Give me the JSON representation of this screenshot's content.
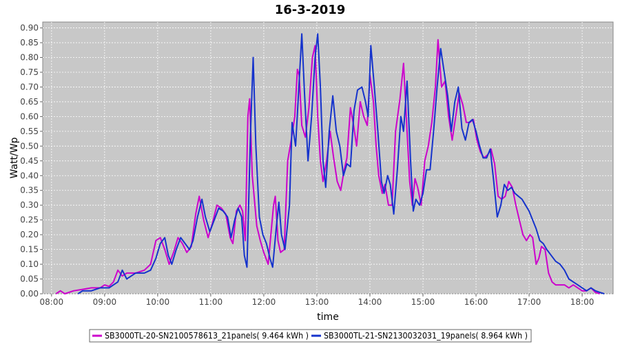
{
  "chart_data": {
    "type": "line",
    "title": "16-3-2019",
    "xlabel": "time",
    "ylabel": "Watt/Wp",
    "xlim": [
      "07:50",
      "18:35"
    ],
    "ylim": [
      0,
      0.92
    ],
    "x_ticks": [
      "08:00",
      "09:00",
      "10:00",
      "11:00",
      "12:00",
      "13:00",
      "14:00",
      "15:00",
      "16:00",
      "17:00",
      "18:00"
    ],
    "y_ticks": [
      0,
      0.05,
      0.1,
      0.15,
      0.2,
      0.25,
      0.3,
      0.35,
      0.4,
      0.45,
      0.5,
      0.55,
      0.6,
      0.65,
      0.7,
      0.75,
      0.8,
      0.85,
      0.9
    ],
    "y_tick_labels": [
      "0.00",
      "0.05",
      "0.10",
      "0.15",
      "0.20",
      "0.25",
      "0.30",
      "0.35",
      "0.40",
      "0.45",
      "0.50",
      "0.55",
      "0.60",
      "0.65",
      "0.70",
      "0.75",
      "0.80",
      "0.85",
      "0.90"
    ],
    "grid": true,
    "background": "#c8c8c8",
    "legend_position": "bottom",
    "series": [
      {
        "name": "SB3000TL-20-SN2100578613_21panels( 9.464 kWh )",
        "color": "#cc00cc",
        "points": [
          [
            "08:05",
            0.0
          ],
          [
            "08:10",
            0.01
          ],
          [
            "08:15",
            0.0
          ],
          [
            "08:25",
            0.01
          ],
          [
            "08:35",
            0.015
          ],
          [
            "08:45",
            0.02
          ],
          [
            "08:55",
            0.02
          ],
          [
            "09:00",
            0.03
          ],
          [
            "09:05",
            0.025
          ],
          [
            "09:10",
            0.04
          ],
          [
            "09:15",
            0.08
          ],
          [
            "09:20",
            0.06
          ],
          [
            "09:25",
            0.07
          ],
          [
            "09:35",
            0.07
          ],
          [
            "09:45",
            0.08
          ],
          [
            "09:52",
            0.1
          ],
          [
            "09:58",
            0.18
          ],
          [
            "10:03",
            0.19
          ],
          [
            "10:08",
            0.15
          ],
          [
            "10:13",
            0.1
          ],
          [
            "10:18",
            0.14
          ],
          [
            "10:23",
            0.19
          ],
          [
            "10:28",
            0.17
          ],
          [
            "10:33",
            0.14
          ],
          [
            "10:38",
            0.16
          ],
          [
            "10:43",
            0.27
          ],
          [
            "10:47",
            0.33
          ],
          [
            "10:52",
            0.25
          ],
          [
            "10:57",
            0.19
          ],
          [
            "11:02",
            0.24
          ],
          [
            "11:07",
            0.3
          ],
          [
            "11:12",
            0.29
          ],
          [
            "11:17",
            0.27
          ],
          [
            "11:22",
            0.19
          ],
          [
            "11:25",
            0.17
          ],
          [
            "11:29",
            0.28
          ],
          [
            "11:33",
            0.3
          ],
          [
            "11:36",
            0.28
          ],
          [
            "11:39",
            0.18
          ],
          [
            "11:42",
            0.6
          ],
          [
            "11:44",
            0.66
          ],
          [
            "11:47",
            0.4
          ],
          [
            "11:52",
            0.23
          ],
          [
            "11:56",
            0.18
          ],
          [
            "12:00",
            0.14
          ],
          [
            "12:05",
            0.1
          ],
          [
            "12:08",
            0.2
          ],
          [
            "12:11",
            0.3
          ],
          [
            "12:13",
            0.33
          ],
          [
            "12:16",
            0.18
          ],
          [
            "12:19",
            0.14
          ],
          [
            "12:23",
            0.15
          ],
          [
            "12:27",
            0.45
          ],
          [
            "12:31",
            0.52
          ],
          [
            "12:35",
            0.6
          ],
          [
            "12:38",
            0.76
          ],
          [
            "12:40",
            0.74
          ],
          [
            "12:43",
            0.57
          ],
          [
            "12:47",
            0.53
          ],
          [
            "12:51",
            0.63
          ],
          [
            "12:55",
            0.8
          ],
          [
            "12:58",
            0.84
          ],
          [
            "13:01",
            0.6
          ],
          [
            "13:04",
            0.45
          ],
          [
            "13:07",
            0.38
          ],
          [
            "13:11",
            0.45
          ],
          [
            "13:15",
            0.55
          ],
          [
            "13:19",
            0.46
          ],
          [
            "13:23",
            0.38
          ],
          [
            "13:27",
            0.35
          ],
          [
            "13:31",
            0.42
          ],
          [
            "13:34",
            0.46
          ],
          [
            "13:38",
            0.63
          ],
          [
            "13:41",
            0.58
          ],
          [
            "13:45",
            0.5
          ],
          [
            "13:49",
            0.65
          ],
          [
            "13:53",
            0.6
          ],
          [
            "13:57",
            0.57
          ],
          [
            "14:00",
            0.74
          ],
          [
            "14:04",
            0.65
          ],
          [
            "14:07",
            0.5
          ],
          [
            "14:10",
            0.4
          ],
          [
            "14:14",
            0.34
          ],
          [
            "14:17",
            0.37
          ],
          [
            "14:21",
            0.3
          ],
          [
            "14:25",
            0.3
          ],
          [
            "14:29",
            0.55
          ],
          [
            "14:34",
            0.66
          ],
          [
            "14:38",
            0.78
          ],
          [
            "14:42",
            0.55
          ],
          [
            "14:45",
            0.38
          ],
          [
            "14:48",
            0.3
          ],
          [
            "14:51",
            0.39
          ],
          [
            "14:54",
            0.36
          ],
          [
            "14:58",
            0.3
          ],
          [
            "15:02",
            0.45
          ],
          [
            "15:06",
            0.5
          ],
          [
            "15:10",
            0.58
          ],
          [
            "15:14",
            0.7
          ],
          [
            "15:17",
            0.86
          ],
          [
            "15:21",
            0.7
          ],
          [
            "15:25",
            0.72
          ],
          [
            "15:29",
            0.6
          ],
          [
            "15:33",
            0.52
          ],
          [
            "15:37",
            0.6
          ],
          [
            "15:41",
            0.68
          ],
          [
            "15:45",
            0.64
          ],
          [
            "15:49",
            0.58
          ],
          [
            "15:53",
            0.58
          ],
          [
            "15:57",
            0.59
          ],
          [
            "16:01",
            0.52
          ],
          [
            "16:05",
            0.48
          ],
          [
            "16:09",
            0.46
          ],
          [
            "16:13",
            0.47
          ],
          [
            "16:17",
            0.49
          ],
          [
            "16:21",
            0.44
          ],
          [
            "16:25",
            0.33
          ],
          [
            "16:29",
            0.32
          ],
          [
            "16:33",
            0.33
          ],
          [
            "16:37",
            0.38
          ],
          [
            "16:41",
            0.36
          ],
          [
            "16:45",
            0.3
          ],
          [
            "16:49",
            0.25
          ],
          [
            "16:53",
            0.2
          ],
          [
            "16:57",
            0.18
          ],
          [
            "17:01",
            0.2
          ],
          [
            "17:04",
            0.19
          ],
          [
            "17:08",
            0.1
          ],
          [
            "17:11",
            0.12
          ],
          [
            "17:14",
            0.16
          ],
          [
            "17:18",
            0.15
          ],
          [
            "17:22",
            0.07
          ],
          [
            "17:26",
            0.04
          ],
          [
            "17:30",
            0.03
          ],
          [
            "17:40",
            0.03
          ],
          [
            "17:45",
            0.02
          ],
          [
            "17:50",
            0.03
          ],
          [
            "17:55",
            0.02
          ],
          [
            "18:00",
            0.01
          ],
          [
            "18:05",
            0.01
          ],
          [
            "18:10",
            0.02
          ],
          [
            "18:15",
            0.005
          ],
          [
            "18:20",
            0.0
          ]
        ]
      },
      {
        "name": "SB3000TL-21-SN2130032031_19panels( 8.964 kWh )",
        "color": "#1533cc",
        "points": [
          [
            "08:30",
            0.0
          ],
          [
            "08:35",
            0.01
          ],
          [
            "08:45",
            0.01
          ],
          [
            "08:55",
            0.02
          ],
          [
            "09:05",
            0.02
          ],
          [
            "09:10",
            0.03
          ],
          [
            "09:15",
            0.04
          ],
          [
            "09:20",
            0.08
          ],
          [
            "09:25",
            0.05
          ],
          [
            "09:30",
            0.06
          ],
          [
            "09:35",
            0.07
          ],
          [
            "09:45",
            0.07
          ],
          [
            "09:52",
            0.08
          ],
          [
            "09:58",
            0.12
          ],
          [
            "10:03",
            0.17
          ],
          [
            "10:08",
            0.19
          ],
          [
            "10:12",
            0.13
          ],
          [
            "10:16",
            0.1
          ],
          [
            "10:21",
            0.15
          ],
          [
            "10:26",
            0.19
          ],
          [
            "10:31",
            0.17
          ],
          [
            "10:36",
            0.15
          ],
          [
            "10:40",
            0.18
          ],
          [
            "10:45",
            0.26
          ],
          [
            "10:50",
            0.32
          ],
          [
            "10:54",
            0.26
          ],
          [
            "10:59",
            0.21
          ],
          [
            "11:04",
            0.25
          ],
          [
            "11:09",
            0.29
          ],
          [
            "11:14",
            0.28
          ],
          [
            "11:19",
            0.26
          ],
          [
            "11:23",
            0.19
          ],
          [
            "11:27",
            0.25
          ],
          [
            "11:31",
            0.29
          ],
          [
            "11:35",
            0.26
          ],
          [
            "11:38",
            0.13
          ],
          [
            "11:41",
            0.09
          ],
          [
            "11:45",
            0.55
          ],
          [
            "11:48",
            0.8
          ],
          [
            "11:51",
            0.5
          ],
          [
            "11:55",
            0.26
          ],
          [
            "11:59",
            0.2
          ],
          [
            "12:03",
            0.17
          ],
          [
            "12:07",
            0.12
          ],
          [
            "12:10",
            0.09
          ],
          [
            "12:14",
            0.22
          ],
          [
            "12:17",
            0.31
          ],
          [
            "12:20",
            0.2
          ],
          [
            "12:24",
            0.15
          ],
          [
            "12:29",
            0.3
          ],
          [
            "12:32",
            0.58
          ],
          [
            "12:36",
            0.5
          ],
          [
            "12:40",
            0.72
          ],
          [
            "12:43",
            0.88
          ],
          [
            "12:46",
            0.68
          ],
          [
            "12:50",
            0.45
          ],
          [
            "12:54",
            0.6
          ],
          [
            "12:58",
            0.8
          ],
          [
            "13:01",
            0.88
          ],
          [
            "13:04",
            0.7
          ],
          [
            "13:07",
            0.45
          ],
          [
            "13:10",
            0.36
          ],
          [
            "13:14",
            0.55
          ],
          [
            "13:18",
            0.67
          ],
          [
            "13:22",
            0.55
          ],
          [
            "13:26",
            0.5
          ],
          [
            "13:30",
            0.4
          ],
          [
            "13:34",
            0.44
          ],
          [
            "13:38",
            0.43
          ],
          [
            "13:42",
            0.62
          ],
          [
            "13:46",
            0.69
          ],
          [
            "13:51",
            0.7
          ],
          [
            "13:55",
            0.65
          ],
          [
            "13:58",
            0.6
          ],
          [
            "14:01",
            0.84
          ],
          [
            "14:05",
            0.7
          ],
          [
            "14:09",
            0.55
          ],
          [
            "14:13",
            0.38
          ],
          [
            "14:16",
            0.34
          ],
          [
            "14:20",
            0.4
          ],
          [
            "14:23",
            0.37
          ],
          [
            "14:27",
            0.27
          ],
          [
            "14:31",
            0.42
          ],
          [
            "14:35",
            0.6
          ],
          [
            "14:38",
            0.55
          ],
          [
            "14:42",
            0.72
          ],
          [
            "14:46",
            0.45
          ],
          [
            "14:49",
            0.28
          ],
          [
            "14:52",
            0.32
          ],
          [
            "14:56",
            0.3
          ],
          [
            "15:00",
            0.34
          ],
          [
            "15:04",
            0.42
          ],
          [
            "15:08",
            0.42
          ],
          [
            "15:12",
            0.55
          ],
          [
            "15:16",
            0.7
          ],
          [
            "15:20",
            0.83
          ],
          [
            "15:24",
            0.75
          ],
          [
            "15:28",
            0.67
          ],
          [
            "15:32",
            0.55
          ],
          [
            "15:36",
            0.65
          ],
          [
            "15:40",
            0.7
          ],
          [
            "15:44",
            0.56
          ],
          [
            "15:48",
            0.52
          ],
          [
            "15:52",
            0.58
          ],
          [
            "15:56",
            0.59
          ],
          [
            "16:00",
            0.55
          ],
          [
            "16:04",
            0.5
          ],
          [
            "16:08",
            0.46
          ],
          [
            "16:12",
            0.46
          ],
          [
            "16:16",
            0.49
          ],
          [
            "16:20",
            0.38
          ],
          [
            "16:24",
            0.26
          ],
          [
            "16:28",
            0.3
          ],
          [
            "16:32",
            0.37
          ],
          [
            "16:36",
            0.35
          ],
          [
            "16:40",
            0.36
          ],
          [
            "16:44",
            0.34
          ],
          [
            "16:48",
            0.33
          ],
          [
            "16:52",
            0.32
          ],
          [
            "16:56",
            0.3
          ],
          [
            "17:00",
            0.28
          ],
          [
            "17:04",
            0.25
          ],
          [
            "17:08",
            0.22
          ],
          [
            "17:12",
            0.18
          ],
          [
            "17:16",
            0.17
          ],
          [
            "17:20",
            0.15
          ],
          [
            "17:25",
            0.13
          ],
          [
            "17:30",
            0.11
          ],
          [
            "17:35",
            0.1
          ],
          [
            "17:40",
            0.08
          ],
          [
            "17:45",
            0.05
          ],
          [
            "17:50",
            0.04
          ],
          [
            "17:55",
            0.03
          ],
          [
            "18:00",
            0.02
          ],
          [
            "18:05",
            0.01
          ],
          [
            "18:10",
            0.02
          ],
          [
            "18:15",
            0.01
          ],
          [
            "18:20",
            0.005
          ],
          [
            "18:25",
            0.0
          ]
        ]
      }
    ]
  }
}
